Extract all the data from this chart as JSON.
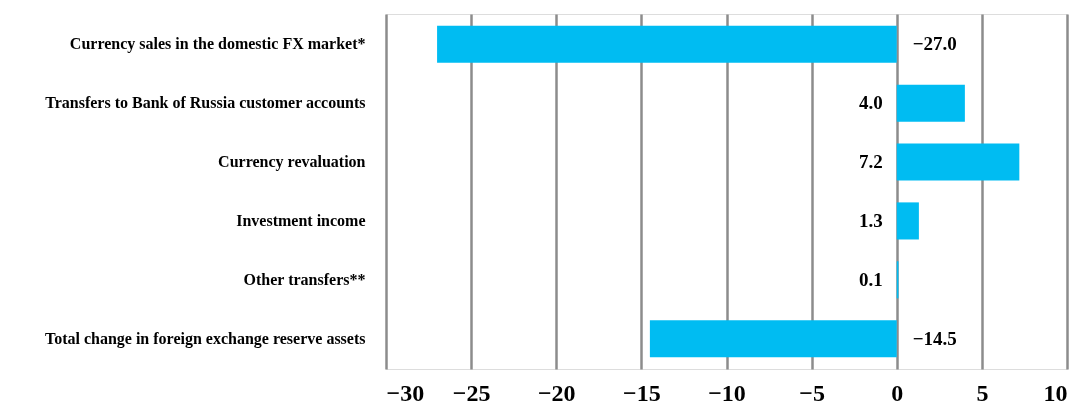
{
  "chart_data": {
    "type": "bar",
    "orientation": "horizontal",
    "categories": [
      "Currency sales in the domestic FX market*",
      "Transfers to Bank of Russia customer accounts",
      "Currency revaluation",
      "Investment income",
      "Other transfers**",
      "Total change in foreign exchange reserve assets"
    ],
    "values": [
      -27.0,
      4.0,
      7.2,
      1.3,
      0.1,
      -14.5
    ],
    "value_labels": [
      "−27.0",
      "4.0",
      "7.2",
      "1.3",
      "0.1",
      "−14.5"
    ],
    "color": "#00bcf2",
    "xlim": [
      -30,
      10
    ],
    "xticks": [
      -30,
      -25,
      -20,
      -15,
      -10,
      -5,
      0,
      5,
      10
    ],
    "grid": "x"
  }
}
